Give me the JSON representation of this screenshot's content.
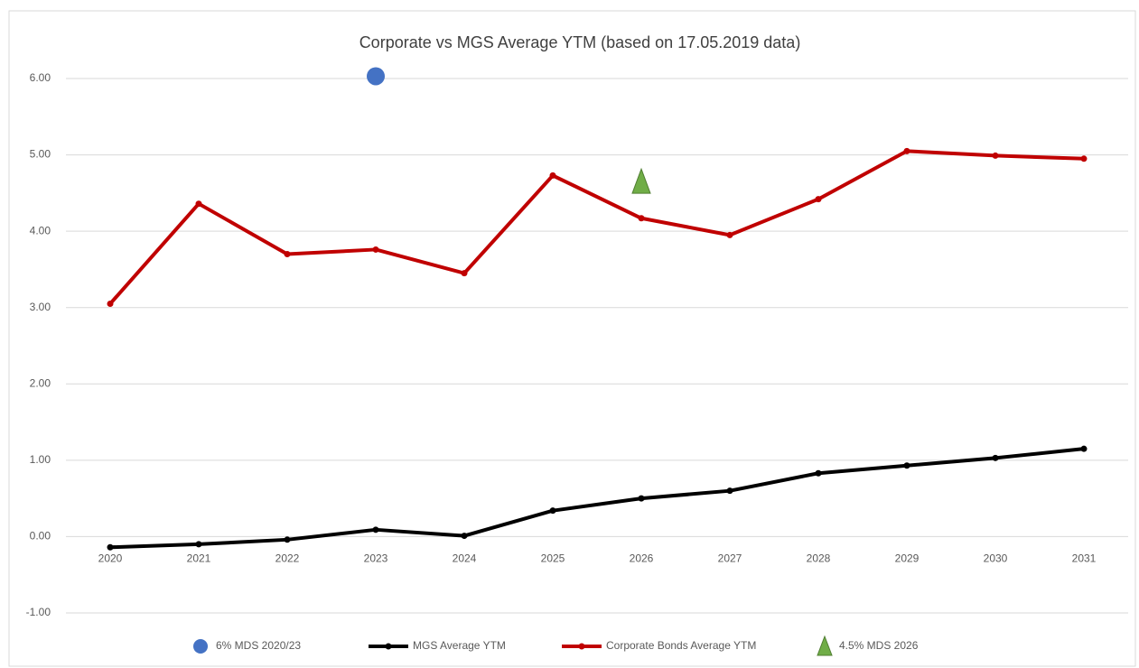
{
  "chart_data": {
    "type": "line",
    "title": "Corporate vs MGS Average YTM (based on 17.05.2019 data)",
    "categories": [
      "2020",
      "2021",
      "2022",
      "2023",
      "2024",
      "2025",
      "2026",
      "2027",
      "2028",
      "2029",
      "2030",
      "2031"
    ],
    "series": [
      {
        "name": "6% MDS 2020/23",
        "color": "#4472c4",
        "marker": "circle",
        "line": false,
        "values": [
          null,
          null,
          null,
          6.03,
          null,
          null,
          null,
          null,
          null,
          null,
          null,
          null
        ]
      },
      {
        "name": "MGS Average YTM",
        "color": "#000000",
        "marker": "dot",
        "line": true,
        "values": [
          -0.14,
          -0.1,
          -0.04,
          0.09,
          0.01,
          0.34,
          0.5,
          0.6,
          0.83,
          0.93,
          1.03,
          1.15
        ]
      },
      {
        "name": "Corporate Bonds Average YTM",
        "color": "#c00000",
        "marker": "dot",
        "line": true,
        "values": [
          3.05,
          4.36,
          3.7,
          3.76,
          3.45,
          4.73,
          4.17,
          3.95,
          4.42,
          5.05,
          4.99,
          4.95
        ]
      },
      {
        "name": "4.5% MDS 2026",
        "color": "#70ad47",
        "marker": "triangle",
        "line": false,
        "values": [
          null,
          null,
          null,
          null,
          null,
          null,
          4.65,
          null,
          null,
          null,
          null,
          null
        ]
      }
    ],
    "ylim": [
      -1,
      6
    ],
    "yticks": [
      {
        "value": -1,
        "label": "-1.00"
      },
      {
        "value": 0,
        "label": "0.00"
      },
      {
        "value": 1,
        "label": "1.00"
      },
      {
        "value": 2,
        "label": "2.00"
      },
      {
        "value": 3,
        "label": "3.00"
      },
      {
        "value": 4,
        "label": "4.00"
      },
      {
        "value": 5,
        "label": "5.00"
      },
      {
        "value": 6,
        "label": "6.00"
      }
    ],
    "grid": true,
    "legend": "bottom"
  }
}
